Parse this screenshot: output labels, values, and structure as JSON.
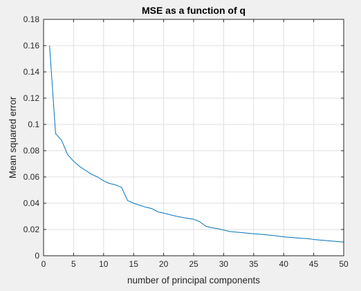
{
  "chart_data": {
    "type": "line",
    "title": "MSE as a function of q",
    "xlabel": "number of principal components",
    "ylabel": "Mean squared error",
    "xlim": [
      0,
      50
    ],
    "ylim": [
      0,
      0.18
    ],
    "x_ticks": [
      0,
      5,
      10,
      15,
      20,
      25,
      30,
      35,
      40,
      45,
      50
    ],
    "y_ticks": [
      0,
      0.02,
      0.04,
      0.06,
      0.08,
      0.1,
      0.12,
      0.14,
      0.16,
      0.18
    ],
    "y_tick_labels": [
      "0",
      "0.02",
      "0.04",
      "0.06",
      "0.08",
      "0.1",
      "0.12",
      "0.14",
      "0.16",
      "0.18"
    ],
    "grid": true,
    "background_color": "#f0f0f0",
    "axes_color": "#ffffff",
    "grid_color": "#dfdfdf",
    "axis_line_color": "#262626",
    "series": [
      {
        "color": "#0072bd",
        "x": [
          1,
          2,
          3,
          4,
          5,
          6,
          7,
          8,
          9,
          10,
          11,
          12,
          13,
          14,
          15,
          16,
          17,
          18,
          19,
          20,
          21,
          22,
          23,
          24,
          25,
          26,
          27,
          28,
          29,
          30,
          31,
          32,
          33,
          34,
          35,
          36,
          37,
          38,
          39,
          40,
          41,
          42,
          43,
          44,
          45,
          46,
          47,
          48,
          49,
          50
        ],
        "y": [
          0.16,
          0.093,
          0.088,
          0.077,
          0.072,
          0.068,
          0.065,
          0.062,
          0.06,
          0.057,
          0.055,
          0.054,
          0.052,
          0.042,
          0.04,
          0.0385,
          0.037,
          0.036,
          0.0335,
          0.0325,
          0.0313,
          0.0302,
          0.0293,
          0.0285,
          0.0278,
          0.026,
          0.0225,
          0.0213,
          0.0206,
          0.0196,
          0.0185,
          0.018,
          0.0176,
          0.0172,
          0.0168,
          0.0164,
          0.016,
          0.0155,
          0.015,
          0.0144,
          0.014,
          0.0136,
          0.0133,
          0.013,
          0.0124,
          0.012,
          0.0116,
          0.0112,
          0.0108,
          0.0104
        ]
      }
    ]
  }
}
